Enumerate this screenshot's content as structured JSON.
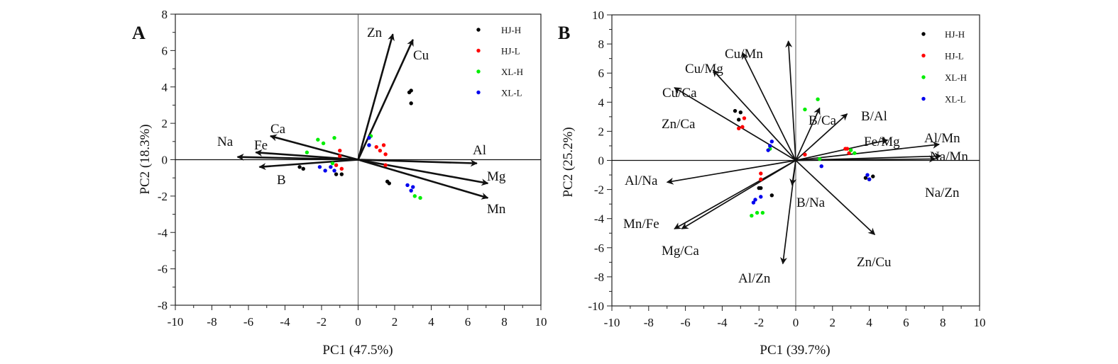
{
  "chart_data": [
    {
      "type": "scatter",
      "panel_label": "A",
      "xlabel": "PC1 (47.5%)",
      "ylabel": "PC2 (18.3%)",
      "xlim": [
        -10,
        10
      ],
      "ylim": [
        -8,
        8
      ],
      "xticks": [
        -10,
        -8,
        -6,
        -4,
        -2,
        0,
        2,
        4,
        6,
        8,
        10
      ],
      "yticks": [
        -8,
        -6,
        -4,
        -2,
        0,
        2,
        4,
        6,
        8
      ],
      "legend_position": "top-right",
      "vectors": [
        {
          "name": "Zn",
          "x": 1.9,
          "y": 6.9
        },
        {
          "name": "Cu",
          "x": 3.0,
          "y": 6.6
        },
        {
          "name": "Ca",
          "x": -4.8,
          "y": 1.3
        },
        {
          "name": "Fe",
          "x": -5.6,
          "y": 0.4
        },
        {
          "name": "Na",
          "x": -6.6,
          "y": 0.15
        },
        {
          "name": "B",
          "x": -5.4,
          "y": -0.4
        },
        {
          "name": "Al",
          "x": 6.5,
          "y": -0.2
        },
        {
          "name": "Mg",
          "x": 7.1,
          "y": -1.3
        },
        {
          "name": "Mn",
          "x": 7.1,
          "y": -2.1
        }
      ],
      "series": [
        {
          "name": "HJ-H",
          "color": "#000000",
          "points": [
            [
              2.8,
              3.7
            ],
            [
              2.9,
              3.8
            ],
            [
              2.9,
              3.1
            ],
            [
              1.6,
              -1.2
            ],
            [
              1.7,
              -1.3
            ],
            [
              -3.2,
              -0.4
            ],
            [
              -3.0,
              -0.5
            ],
            [
              -1.2,
              -0.8
            ],
            [
              -0.9,
              -0.8
            ]
          ]
        },
        {
          "name": "HJ-L",
          "color": "#ff0000",
          "points": [
            [
              1.0,
              0.7
            ],
            [
              1.2,
              0.5
            ],
            [
              1.4,
              0.8
            ],
            [
              1.5,
              0.3
            ],
            [
              1.5,
              -0.3
            ],
            [
              -1.0,
              0.5
            ],
            [
              -1.0,
              0.2
            ],
            [
              -1.2,
              -0.3
            ],
            [
              -0.9,
              -0.5
            ]
          ]
        },
        {
          "name": "XL-H",
          "color": "#00ee00",
          "points": [
            [
              0.7,
              1.3
            ],
            [
              0.6,
              0.8
            ],
            [
              3.1,
              -2.0
            ],
            [
              3.4,
              -2.1
            ],
            [
              -2.2,
              1.1
            ],
            [
              -1.9,
              0.9
            ],
            [
              -1.3,
              1.2
            ],
            [
              -2.8,
              0.4
            ],
            [
              -1.4,
              -0.2
            ]
          ]
        },
        {
          "name": "XL-L",
          "color": "#0000ee",
          "points": [
            [
              0.6,
              1.2
            ],
            [
              0.6,
              0.8
            ],
            [
              2.7,
              -1.4
            ],
            [
              3.0,
              -1.5
            ],
            [
              2.9,
              -1.7
            ],
            [
              -2.1,
              -0.4
            ],
            [
              -1.8,
              -0.6
            ],
            [
              -1.5,
              -0.4
            ],
            [
              -1.3,
              -0.6
            ]
          ]
        }
      ]
    },
    {
      "type": "scatter",
      "panel_label": "B",
      "xlabel": "PC1 (39.7%)",
      "ylabel": "PC2 (25.2%)",
      "xlim": [
        -10,
        10
      ],
      "ylim": [
        -10,
        10
      ],
      "xticks": [
        -10,
        -8,
        -6,
        -4,
        -2,
        0,
        2,
        4,
        6,
        8,
        10
      ],
      "yticks": [
        -10,
        -8,
        -6,
        -4,
        -2,
        0,
        2,
        4,
        6,
        8,
        10
      ],
      "legend_position": "top-right",
      "vectors": [
        {
          "name": "Cu/Mn",
          "x": -0.4,
          "y": 8.2
        },
        {
          "name": "Cu/Mg",
          "x": -2.9,
          "y": 7.4
        },
        {
          "name": "Cu/Ca",
          "x": -4.5,
          "y": 6.2
        },
        {
          "name": "Zn/Ca",
          "x": -6.6,
          "y": 5.0
        },
        {
          "name": "B/Ca",
          "x": 1.3,
          "y": 3.6
        },
        {
          "name": "B/Al",
          "x": 2.8,
          "y": 3.2
        },
        {
          "name": "Fe/Mg",
          "x": 5.0,
          "y": 1.4
        },
        {
          "name": "Al/Mn",
          "x": 7.8,
          "y": 1.1
        },
        {
          "name": "Na/Mn",
          "x": 7.9,
          "y": 0.3
        },
        {
          "name": "Na/Zn",
          "x": 7.6,
          "y": 0.1
        },
        {
          "name": "Al/Na",
          "x": -7.0,
          "y": -1.5
        },
        {
          "name": "Mn/Fe",
          "x": -6.6,
          "y": -4.7
        },
        {
          "name": "Mg/Ca",
          "x": -6.2,
          "y": -4.7
        },
        {
          "name": "B/Na",
          "x": -0.2,
          "y": -1.7
        },
        {
          "name": "Al/Zn",
          "x": -0.7,
          "y": -7.1
        },
        {
          "name": "Zn/Cu",
          "x": 4.3,
          "y": -5.1
        }
      ],
      "series": [
        {
          "name": "HJ-H",
          "color": "#000000",
          "points": [
            [
              -3.3,
              3.4
            ],
            [
              -3.0,
              3.3
            ],
            [
              -3.1,
              2.8
            ],
            [
              -1.9,
              -1.9
            ],
            [
              -2.0,
              -1.9
            ],
            [
              -1.3,
              -2.4
            ],
            [
              3.8,
              -1.2
            ],
            [
              4.0,
              -1.3
            ],
            [
              4.2,
              -1.1
            ]
          ]
        },
        {
          "name": "HJ-L",
          "color": "#ff0000",
          "points": [
            [
              -2.9,
              2.3
            ],
            [
              -2.8,
              2.9
            ],
            [
              -3.1,
              2.2
            ],
            [
              -1.9,
              -1.3
            ],
            [
              -1.9,
              -0.9
            ],
            [
              2.7,
              0.8
            ],
            [
              2.9,
              0.5
            ],
            [
              2.8,
              0.8
            ],
            [
              0.5,
              0.4
            ]
          ]
        },
        {
          "name": "XL-H",
          "color": "#00ee00",
          "points": [
            [
              1.2,
              4.2
            ],
            [
              0.5,
              3.5
            ],
            [
              -2.4,
              -3.8
            ],
            [
              -2.1,
              -3.6
            ],
            [
              -1.8,
              -3.6
            ],
            [
              3.2,
              0.5
            ],
            [
              3.0,
              0.7
            ],
            [
              1.3,
              0.1
            ],
            [
              -1.4,
              0.8
            ]
          ]
        },
        {
          "name": "XL-L",
          "color": "#0000ee",
          "points": [
            [
              -1.3,
              1.3
            ],
            [
              -1.4,
              1.0
            ],
            [
              -1.5,
              0.7
            ],
            [
              -2.3,
              -2.9
            ],
            [
              -2.2,
              -2.7
            ],
            [
              -1.9,
              -2.5
            ],
            [
              3.9,
              -1.0
            ],
            [
              4.0,
              -1.3
            ],
            [
              1.4,
              -0.4
            ]
          ]
        }
      ]
    }
  ]
}
